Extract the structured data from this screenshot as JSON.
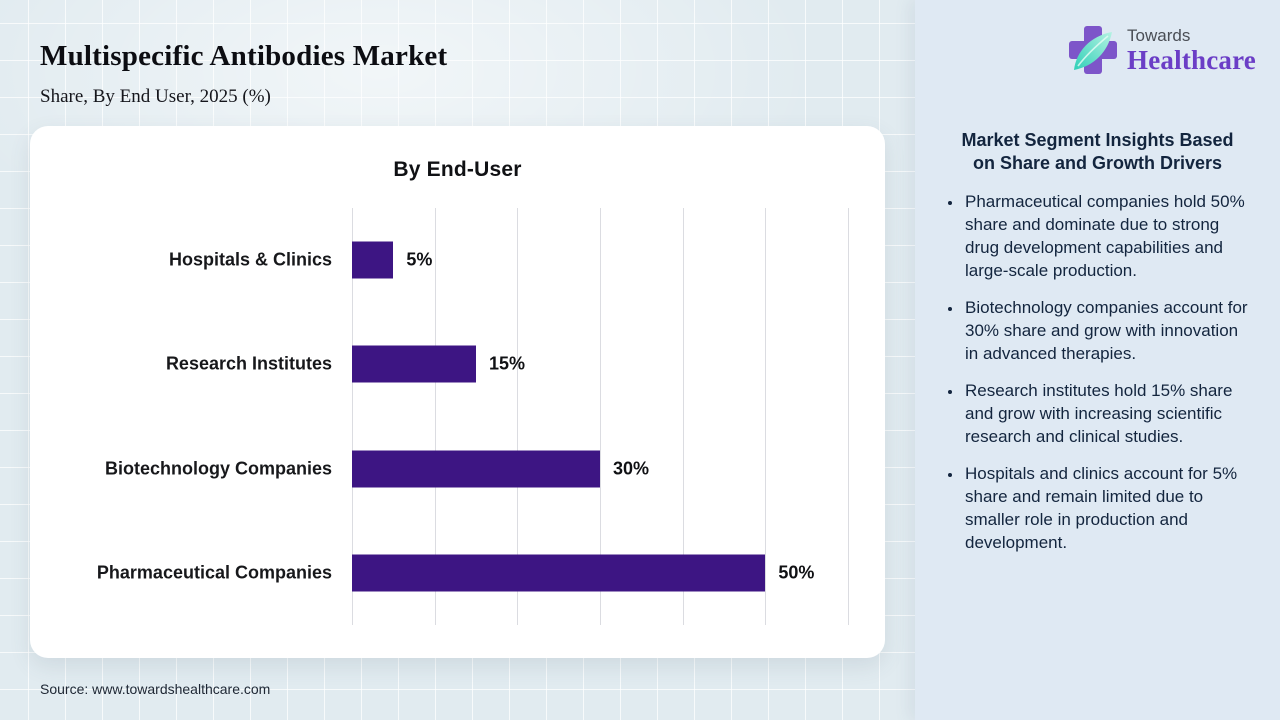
{
  "header": {
    "title": "Multispecific Antibodies Market",
    "subtitle": "Share, By End User, 2025 (%)"
  },
  "logo": {
    "line1": "Towards",
    "line2": "Healthcare",
    "icon": "cross-and-leaf",
    "cross_color": "#7d55c9",
    "leaf_color_dark": "#2fd0b8",
    "leaf_color_light": "#b4f2e2",
    "wordmark_color": "#6b3ec6"
  },
  "chart_data": {
    "type": "bar",
    "orientation": "horizontal",
    "title": "By End-User",
    "categories": [
      "Hospitals & Clinics",
      "Research Institutes",
      "Biotechnology Companies",
      "Pharmaceutical Companies"
    ],
    "values": [
      5,
      15,
      30,
      50
    ],
    "value_labels": [
      "5%",
      "15%",
      "30%",
      "50%"
    ],
    "xlabel": "",
    "ylabel": "",
    "xlim": [
      0,
      60
    ],
    "gridline_step": 10,
    "grid": true,
    "legend": false,
    "bar_color": "#3d1583"
  },
  "sidebar": {
    "heading_lines": [
      "Market Segment Insights Based",
      "on Share and Growth Drivers"
    ],
    "bullets": [
      "Pharmaceutical companies hold 50% share and dominate due to strong drug development capabilities and large-scale production.",
      "Biotechnology companies account for 30% share and grow with innovation in advanced therapies.",
      "Research institutes hold 15% share and grow with increasing scientific research and clinical studies.",
      "Hospitals and clinics account for 5% share and remain limited due to smaller role in production and development."
    ]
  },
  "footer": {
    "source": "Source: www.towardshealthcare.com"
  },
  "colors": {
    "page_background": "#e1ebf0",
    "sidebar_background": "#dfe9f3",
    "card_background": "#ffffff",
    "bar": "#3d1583",
    "text_dark": "#101114",
    "sidebar_text": "#13253e"
  }
}
